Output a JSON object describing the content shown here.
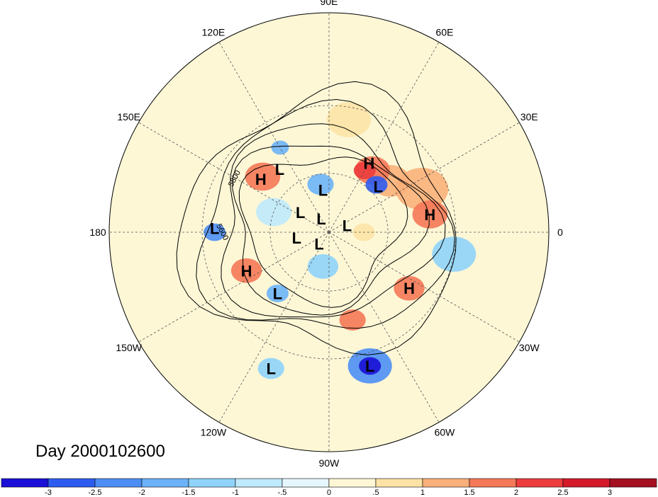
{
  "title": "Day 2000102600",
  "longitude_labels": [
    {
      "text": "90E",
      "lon": 90
    },
    {
      "text": "60E",
      "lon": 60
    },
    {
      "text": "30E",
      "lon": 30
    },
    {
      "text": "0",
      "lon": 0
    },
    {
      "text": "30W",
      "lon": -30
    },
    {
      "text": "60W",
      "lon": -60
    },
    {
      "text": "90W",
      "lon": -90
    },
    {
      "text": "120W",
      "lon": -120
    },
    {
      "text": "150W",
      "lon": -150
    },
    {
      "text": "180",
      "lon": 180
    },
    {
      "text": "150E",
      "lon": 150
    },
    {
      "text": "120E",
      "lon": 120
    }
  ],
  "contour_labels": [
    "5800",
    "5600"
  ],
  "pressure_centers": [
    {
      "type": "L",
      "lon": 128,
      "lat": 50
    },
    {
      "type": "H",
      "lon": 142,
      "lat": 47
    },
    {
      "type": "L",
      "lon": 178,
      "lat": 35
    },
    {
      "type": "H",
      "lon": -155,
      "lat": 45
    },
    {
      "type": "L",
      "lon": -130,
      "lat": 50
    },
    {
      "type": "L",
      "lon": -113,
      "lat": 22
    },
    {
      "type": "L",
      "lon": -73,
      "lat": 25
    },
    {
      "type": "H",
      "lon": -35,
      "lat": 42
    },
    {
      "type": "H",
      "lon": 10,
      "lat": 40
    },
    {
      "type": "L",
      "lon": 43,
      "lat": 56
    },
    {
      "type": "H",
      "lon": 60,
      "lat": 50
    },
    {
      "type": "L",
      "lon": 98,
      "lat": 68
    },
    {
      "type": "L",
      "lon": 145,
      "lat": 72
    },
    {
      "type": "L",
      "lon": 120,
      "lat": 82
    },
    {
      "type": "L",
      "lon": 20,
      "lat": 80
    },
    {
      "type": "L",
      "lon": -170,
      "lat": 73
    },
    {
      "type": "L",
      "lon": -130,
      "lat": 82
    }
  ],
  "colorbar": {
    "ticks": [
      "-3",
      "-2.5",
      "-2",
      "-1.5",
      "-1",
      "-.5",
      "0",
      ".5",
      "1",
      "1.5",
      "2",
      "2.5",
      "3"
    ],
    "colors": [
      "#1a0fd6",
      "#2e5cf0",
      "#4d8ef5",
      "#6cb2f8",
      "#8fd3fa",
      "#bfe9fc",
      "#e6f6fd",
      "#fdf7d6",
      "#fde3a6",
      "#fab07a",
      "#f57858",
      "#ec3c3c",
      "#d41a2a",
      "#a50f22"
    ]
  },
  "anomaly_blobs": [
    {
      "lon": 40,
      "lat": 50,
      "r": 0.09,
      "color": "#fab07a"
    },
    {
      "lon": 55,
      "lat": 52,
      "r": 0.08,
      "color": "#f57858"
    },
    {
      "lon": 60,
      "lat": 54,
      "r": 0.05,
      "color": "#ec3c3c"
    },
    {
      "lon": 25,
      "lat": 40,
      "r": 0.12,
      "color": "#fab07a"
    },
    {
      "lon": 10,
      "lat": 40,
      "r": 0.08,
      "color": "#f57858"
    },
    {
      "lon": 45,
      "lat": 56,
      "r": 0.05,
      "color": "#2e5cf0"
    },
    {
      "lon": 140,
      "lat": 47,
      "r": 0.08,
      "color": "#f57858"
    },
    {
      "lon": -155,
      "lat": 45,
      "r": 0.07,
      "color": "#f57858"
    },
    {
      "lon": -35,
      "lat": 42,
      "r": 0.07,
      "color": "#f57858"
    },
    {
      "lon": -73,
      "lat": 25,
      "r": 0.1,
      "color": "#4d8ef5"
    },
    {
      "lon": -73,
      "lat": 25,
      "r": 0.05,
      "color": "#1a0fd6"
    },
    {
      "lon": -75,
      "lat": 45,
      "r": 0.06,
      "color": "#f57858"
    },
    {
      "lon": 180,
      "lat": 35,
      "r": 0.05,
      "color": "#4d8ef5"
    },
    {
      "lon": -130,
      "lat": 50,
      "r": 0.05,
      "color": "#6cb2f8"
    },
    {
      "lon": 100,
      "lat": 65,
      "r": 0.06,
      "color": "#6cb2f8"
    },
    {
      "lon": 120,
      "lat": 42,
      "r": 0.04,
      "color": "#6cb2f8"
    },
    {
      "lon": -10,
      "lat": 30,
      "r": 0.1,
      "color": "#8fd3fa"
    },
    {
      "lon": -113,
      "lat": 22,
      "r": 0.06,
      "color": "#8fd3fa"
    },
    {
      "lon": 160,
      "lat": 60,
      "r": 0.08,
      "color": "#bfe9fc"
    },
    {
      "lon": 0,
      "lat": 72,
      "r": 0.05,
      "color": "#fde3a6"
    },
    {
      "lon": -100,
      "lat": 72,
      "r": 0.07,
      "color": "#8fd3fa"
    },
    {
      "lon": 80,
      "lat": 35,
      "r": 0.1,
      "color": "#fde3a6"
    }
  ]
}
